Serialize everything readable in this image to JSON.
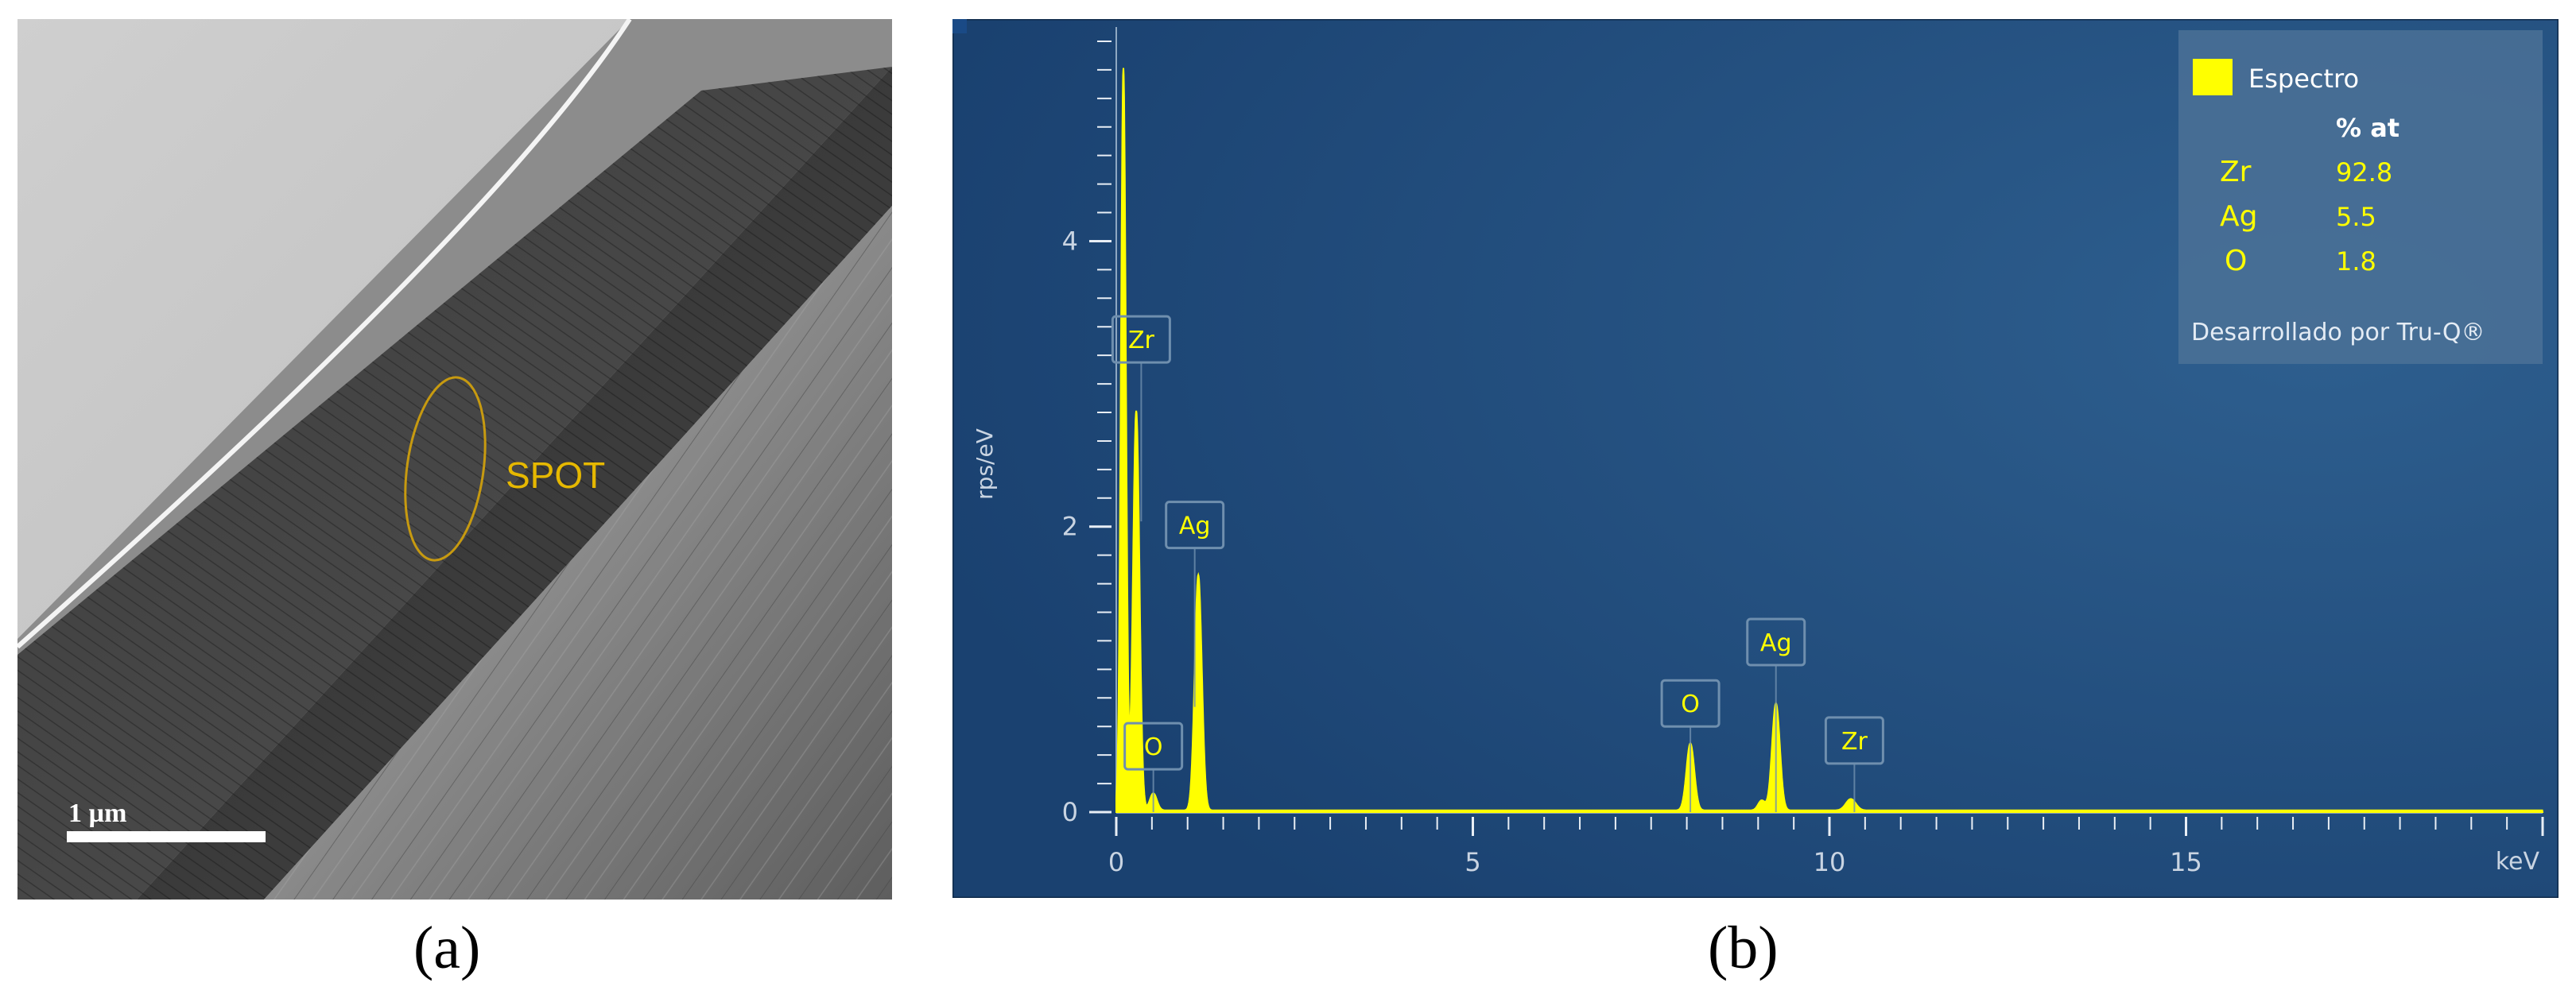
{
  "panels": {
    "a": {
      "caption": "(a)",
      "spot_label": "SPOT",
      "scale_bar_label": "1 µm",
      "colors": {
        "spot": "#e6b800",
        "scale_bar": "#ffffff"
      }
    },
    "b": {
      "caption": "(b)",
      "legend": {
        "series_name": "Espectro",
        "column_header": "% at",
        "rows": [
          {
            "element": "Zr",
            "value": "92.8"
          },
          {
            "element": "Ag",
            "value": "5.5"
          },
          {
            "element": "O",
            "value": "1.8"
          }
        ],
        "footer": "Desarrollado por Tru-Q®"
      },
      "colors": {
        "background": "#1f4a78",
        "spectrum": "#ffff00",
        "axis": "#e8eef5",
        "marker_box": "#6f8fae"
      }
    }
  },
  "chart_data": {
    "type": "line",
    "xlabel": "keV",
    "ylabel": "rps/eV",
    "xlim": [
      0,
      20
    ],
    "ylim": [
      0,
      5.5
    ],
    "x_ticks": [
      0,
      5,
      10,
      15
    ],
    "y_ticks": [
      0,
      2,
      4
    ],
    "grid": false,
    "legend": "top-right",
    "series": [
      {
        "name": "Espectro",
        "peaks": [
          {
            "x": 0.1,
            "y": 5.2,
            "w": 0.035
          },
          {
            "x": 0.28,
            "y": 2.8,
            "w": 0.045
          },
          {
            "x": 0.52,
            "y": 0.12,
            "w": 0.05
          },
          {
            "x": 1.15,
            "y": 1.65,
            "w": 0.05
          },
          {
            "x": 8.05,
            "y": 0.47,
            "w": 0.055
          },
          {
            "x": 9.05,
            "y": 0.07,
            "w": 0.05
          },
          {
            "x": 9.25,
            "y": 0.75,
            "w": 0.055
          },
          {
            "x": 10.3,
            "y": 0.08,
            "w": 0.07
          }
        ]
      }
    ],
    "annotations": [
      {
        "label": "Zr",
        "x": 0.35,
        "y": 3.15
      },
      {
        "label": "O",
        "x": 0.52,
        "y": 0.3
      },
      {
        "label": "Ag",
        "x": 1.1,
        "y": 1.85
      },
      {
        "label": "O",
        "x": 8.05,
        "y": 0.6
      },
      {
        "label": "Ag",
        "x": 9.25,
        "y": 1.03
      },
      {
        "label": "Zr",
        "x": 10.35,
        "y": 0.34
      }
    ]
  }
}
